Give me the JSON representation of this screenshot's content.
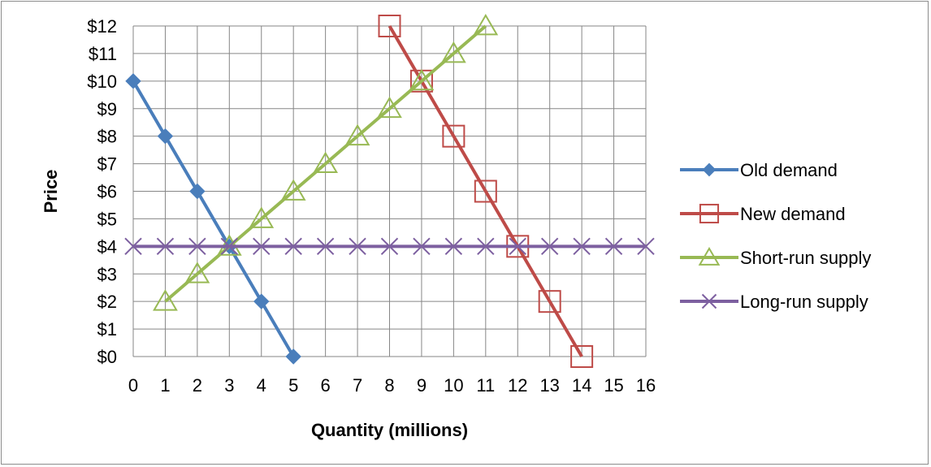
{
  "chart_data": {
    "type": "line",
    "xlabel": "Quantity (millions)",
    "ylabel": "Price",
    "xlim": [
      0,
      16
    ],
    "ylim": [
      0,
      12
    ],
    "x_ticks": [
      "0",
      "1",
      "2",
      "3",
      "4",
      "5",
      "6",
      "7",
      "8",
      "9",
      "10",
      "11",
      "12",
      "13",
      "14",
      "15",
      "16"
    ],
    "y_ticks": [
      "$0",
      "$1",
      "$2",
      "$3",
      "$4",
      "$5",
      "$6",
      "$7",
      "$8",
      "$9",
      "$10",
      "$11",
      "$12"
    ],
    "grid": true,
    "legend_position": "right",
    "series": [
      {
        "name": "Old demand",
        "color": "#4a7ebb",
        "marker": "diamond",
        "points": [
          [
            0,
            10
          ],
          [
            1,
            8
          ],
          [
            2,
            6
          ],
          [
            3,
            4
          ],
          [
            4,
            2
          ],
          [
            5,
            0
          ]
        ]
      },
      {
        "name": "New demand",
        "color": "#be4b48",
        "marker": "square-open",
        "points": [
          [
            8,
            12
          ],
          [
            9,
            10
          ],
          [
            10,
            8
          ],
          [
            11,
            6
          ],
          [
            12,
            4
          ],
          [
            13,
            2
          ],
          [
            14,
            0
          ]
        ]
      },
      {
        "name": "Short-run supply",
        "color": "#98b954",
        "marker": "triangle-open",
        "points": [
          [
            1,
            2
          ],
          [
            2,
            3
          ],
          [
            3,
            4
          ],
          [
            4,
            5
          ],
          [
            5,
            6
          ],
          [
            6,
            7
          ],
          [
            7,
            8
          ],
          [
            8,
            9
          ],
          [
            9,
            10
          ],
          [
            10,
            11
          ],
          [
            11,
            12
          ]
        ]
      },
      {
        "name": "Long-run supply",
        "color": "#7d60a0",
        "marker": "x",
        "points": [
          [
            0,
            4
          ],
          [
            1,
            4
          ],
          [
            2,
            4
          ],
          [
            3,
            4
          ],
          [
            4,
            4
          ],
          [
            5,
            4
          ],
          [
            6,
            4
          ],
          [
            7,
            4
          ],
          [
            8,
            4
          ],
          [
            9,
            4
          ],
          [
            10,
            4
          ],
          [
            11,
            4
          ],
          [
            12,
            4
          ],
          [
            13,
            4
          ],
          [
            14,
            4
          ],
          [
            15,
            4
          ],
          [
            16,
            4
          ]
        ]
      }
    ]
  }
}
